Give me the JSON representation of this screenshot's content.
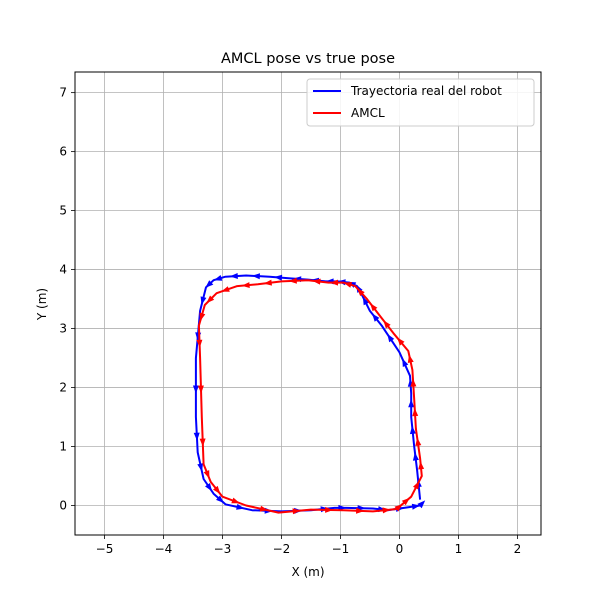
{
  "chart_data": {
    "type": "line",
    "title": "AMCL pose vs true pose",
    "xlabel": "X (m)",
    "ylabel": "Y (m)",
    "xlim": [
      -5.5,
      2.4
    ],
    "ylim": [
      -0.5,
      7.35
    ],
    "xticks": [
      -5,
      -4,
      -3,
      -2,
      -1,
      0,
      1,
      2
    ],
    "yticks": [
      0,
      1,
      2,
      3,
      4,
      5,
      6,
      7
    ],
    "grid": true,
    "legend": "top-right",
    "series": [
      {
        "name": "Trayectoria real del robot",
        "color": "#0000ff",
        "x": [
          0.35,
          0.3,
          0.25,
          0.2,
          0.2,
          0.18,
          0.0,
          -0.3,
          -0.5,
          -0.65,
          -0.72,
          -0.85,
          -1.05,
          -1.25,
          -1.55,
          -1.85,
          -2.2,
          -2.6,
          -2.95,
          -3.15,
          -3.28,
          -3.38,
          -3.45,
          -3.45,
          -3.42,
          -3.32,
          -3.15,
          -2.95,
          -2.5,
          -2.0,
          -1.5,
          -1.1,
          -0.9,
          -0.45,
          -0.2,
          0.15,
          0.35,
          0.38
        ],
        "y": [
          0.1,
          0.6,
          1.0,
          1.5,
          1.9,
          2.2,
          2.6,
          3.05,
          3.3,
          3.6,
          3.72,
          3.78,
          3.8,
          3.8,
          3.83,
          3.85,
          3.88,
          3.9,
          3.88,
          3.82,
          3.7,
          3.3,
          2.5,
          1.5,
          0.9,
          0.45,
          0.2,
          0.02,
          -0.08,
          -0.1,
          -0.08,
          -0.04,
          -0.04,
          -0.05,
          -0.08,
          -0.03,
          0.0,
          0.03
        ]
      },
      {
        "name": "AMCL",
        "color": "#ff0000",
        "x": [
          0.0,
          0.2,
          0.38,
          0.35,
          0.28,
          0.25,
          0.22,
          0.15,
          -0.1,
          -0.32,
          -0.55,
          -0.75,
          -0.95,
          -1.2,
          -1.55,
          -2.0,
          -2.4,
          -2.75,
          -3.1,
          -3.3,
          -3.4,
          -3.38,
          -3.35,
          -3.32,
          -3.2,
          -3.0,
          -2.6,
          -2.05,
          -1.5,
          -0.95,
          -0.45,
          -0.05,
          0.0
        ],
        "y": [
          -0.02,
          0.15,
          0.5,
          0.8,
          1.3,
          1.8,
          2.3,
          2.62,
          2.92,
          3.2,
          3.5,
          3.72,
          3.78,
          3.78,
          3.82,
          3.8,
          3.75,
          3.72,
          3.6,
          3.4,
          3.05,
          2.5,
          1.5,
          0.7,
          0.4,
          0.15,
          0.0,
          -0.12,
          -0.07,
          -0.08,
          -0.1,
          -0.06,
          -0.02
        ]
      }
    ]
  }
}
